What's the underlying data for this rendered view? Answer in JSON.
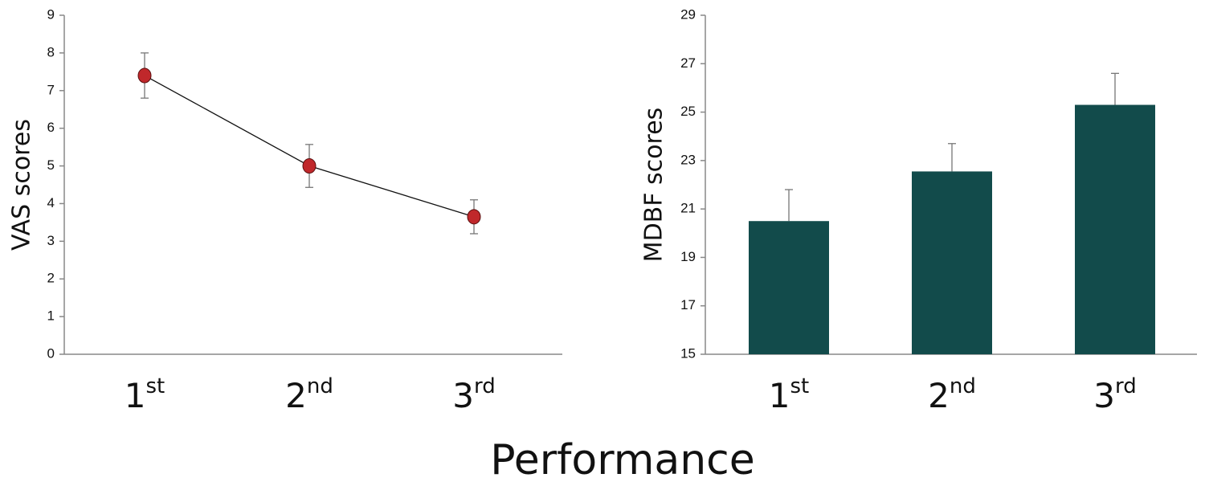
{
  "chart_data": [
    {
      "type": "line",
      "ylabel": "VAS scores",
      "categories": [
        "1st",
        "2nd",
        "3rd"
      ],
      "values": [
        7.4,
        5.0,
        3.65
      ],
      "errors": [
        0.6,
        0.57,
        0.45
      ],
      "color": "#c0282b",
      "line_color": "#111111",
      "ylim": [
        0,
        9
      ],
      "yticks": [
        0,
        1,
        2,
        3,
        4,
        5,
        6,
        7,
        8,
        9
      ]
    },
    {
      "type": "bar",
      "ylabel": "MDBF scores",
      "categories": [
        "1st",
        "2nd",
        "3rd"
      ],
      "values": [
        20.5,
        22.55,
        25.3
      ],
      "errors": [
        1.3,
        1.15,
        1.3
      ],
      "color": "#124b4b",
      "ylim": [
        15,
        29
      ],
      "yticks": [
        15,
        17,
        19,
        21,
        23,
        25,
        27,
        29
      ]
    }
  ],
  "xlabel": "Performance"
}
